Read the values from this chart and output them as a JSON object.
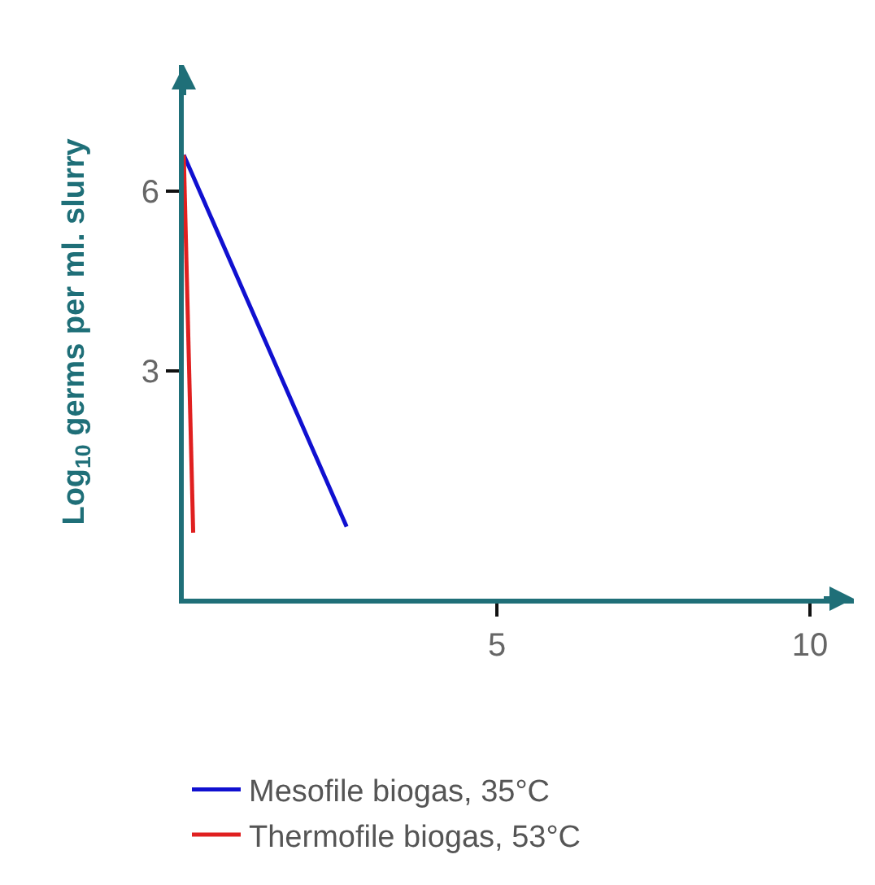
{
  "chart_data": {
    "type": "line",
    "ylabel": "Log$_{10}$ germs per ml. slurry",
    "xlim": [
      0,
      10.7
    ],
    "ylim": [
      -0.8,
      8.1
    ],
    "xticks": [
      5,
      10
    ],
    "yticks": [
      3,
      6
    ],
    "grid": false,
    "legend": "bottom",
    "marker": "none",
    "line_style": "solid",
    "series": [
      {
        "name": "Mesofile biogas, 35°C",
        "color": "#1010d0",
        "x": [
          0,
          2.6
        ],
        "values": [
          6.6,
          0.4
        ]
      },
      {
        "name": "Thermofile biogas, 53°C",
        "color": "#e02020",
        "x": [
          0,
          0.15
        ],
        "values": [
          6.6,
          0.3
        ]
      }
    ]
  }
}
